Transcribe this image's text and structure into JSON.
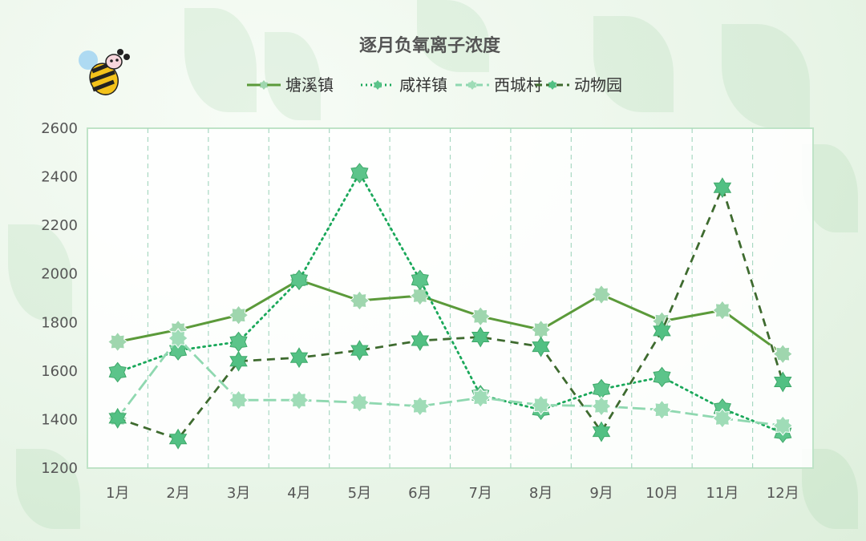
{
  "chart_data": {
    "type": "line",
    "title": "逐月负氧离子浓度",
    "xlabel": "",
    "ylabel": "",
    "categories": [
      "1月",
      "2月",
      "3月",
      "4月",
      "5月",
      "6月",
      "7月",
      "8月",
      "9月",
      "10月",
      "11月",
      "12月"
    ],
    "ylim": [
      1200,
      2600
    ],
    "yticks": [
      1200,
      1400,
      1600,
      1800,
      2000,
      2200,
      2400,
      2600
    ],
    "grid": "vertical-dashed",
    "legend_position": "top",
    "series": [
      {
        "name": "塘溪镇",
        "style": "solid",
        "color": "#5b9a3a",
        "values": [
          1720,
          1770,
          1830,
          1975,
          1890,
          1910,
          1825,
          1770,
          1915,
          1805,
          1850,
          1670
        ]
      },
      {
        "name": "咸祥镇",
        "style": "dotted",
        "color": "#1aa85a",
        "values": [
          1595,
          1685,
          1720,
          1975,
          2415,
          1975,
          1500,
          1440,
          1525,
          1575,
          1445,
          1345
        ]
      },
      {
        "name": "西城村",
        "style": "longdash",
        "color": "#8fd8b0",
        "values": [
          1405,
          1735,
          1480,
          1480,
          1470,
          1455,
          1490,
          1460,
          1455,
          1440,
          1405,
          1375
        ]
      },
      {
        "name": "动物园",
        "style": "dash",
        "color": "#3e6b2f",
        "values": [
          1405,
          1320,
          1640,
          1655,
          1685,
          1725,
          1740,
          1700,
          1350,
          1765,
          2355,
          1555
        ]
      }
    ]
  }
}
